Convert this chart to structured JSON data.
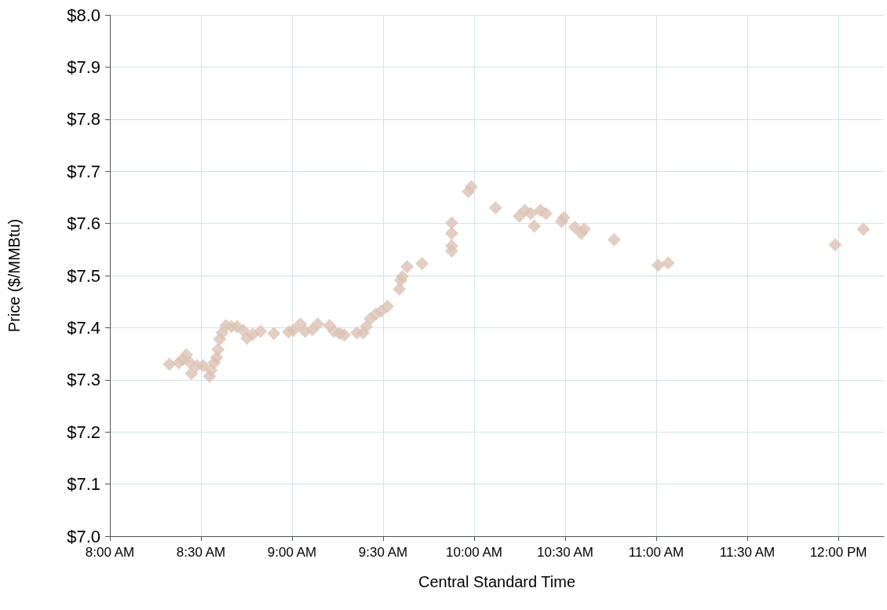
{
  "chart_data": {
    "type": "scatter",
    "xlabel": "Central Standard Time",
    "ylabel": "Price ($/MMBtu)",
    "x": [
      8.327,
      8.379,
      8.4,
      8.42,
      8.44,
      8.448,
      8.478,
      8.512,
      8.547,
      8.555,
      8.573,
      8.586,
      8.594,
      8.603,
      8.616,
      8.637,
      8.667,
      8.698,
      8.732,
      8.753,
      8.784,
      8.827,
      8.9,
      8.982,
      9.008,
      9.046,
      9.072,
      9.111,
      9.141,
      9.206,
      9.231,
      9.262,
      9.287,
      9.356,
      9.391,
      9.408,
      9.43,
      9.46,
      9.49,
      9.524,
      9.589,
      9.597,
      9.606,
      9.632,
      9.714,
      9.877,
      9.877,
      9.877,
      9.877,
      9.968,
      9.985,
      10.118,
      10.248,
      10.278,
      10.312,
      10.33,
      10.364,
      10.394,
      10.48,
      10.493,
      10.553,
      10.588,
      10.605,
      10.769,
      11.01,
      11.066,
      11.983,
      12.138
    ],
    "values": [
      7.33,
      7.333,
      7.339,
      7.348,
      7.333,
      7.312,
      7.327,
      7.327,
      7.307,
      7.318,
      7.333,
      7.343,
      7.358,
      7.378,
      7.39,
      7.404,
      7.402,
      7.402,
      7.395,
      7.38,
      7.387,
      7.393,
      7.389,
      7.392,
      7.395,
      7.407,
      7.393,
      7.396,
      7.407,
      7.404,
      7.393,
      7.389,
      7.386,
      7.39,
      7.39,
      7.402,
      7.417,
      7.426,
      7.432,
      7.441,
      7.474,
      7.491,
      7.498,
      7.517,
      7.523,
      7.601,
      7.581,
      7.557,
      7.547,
      7.661,
      7.67,
      7.63,
      7.614,
      7.625,
      7.619,
      7.595,
      7.625,
      7.619,
      7.604,
      7.611,
      7.593,
      7.581,
      7.589,
      7.569,
      7.52,
      7.524,
      7.559,
      7.589
    ],
    "color": "#dbc2b4",
    "marker": "diamond",
    "grid": true,
    "xlim": [
      8,
      12.25
    ],
    "xticks": [
      {
        "value": 8,
        "label": "8:00 AM"
      },
      {
        "value": 8.5,
        "label": "8:30 AM"
      },
      {
        "value": 9,
        "label": "9:00 AM"
      },
      {
        "value": 9.5,
        "label": "9:30 AM"
      },
      {
        "value": 10,
        "label": "10:00 AM"
      },
      {
        "value": 10.5,
        "label": "10:30 AM"
      },
      {
        "value": 11,
        "label": "11:00 AM"
      },
      {
        "value": 11.5,
        "label": "11:30 AM"
      },
      {
        "value": 12,
        "label": "12:00 PM"
      }
    ],
    "ylim": [
      7,
      8
    ],
    "yticks": [
      {
        "value": 7,
        "label": "$7.0"
      },
      {
        "value": 7.1,
        "label": "$7.1"
      },
      {
        "value": 7.2,
        "label": "$7.2"
      },
      {
        "value": 7.3,
        "label": "$7.3"
      },
      {
        "value": 7.4,
        "label": "$7.4"
      },
      {
        "value": 7.5,
        "label": "$7.5"
      },
      {
        "value": 7.6,
        "label": "$7.6"
      },
      {
        "value": 7.7,
        "label": "$7.7"
      },
      {
        "value": 7.8,
        "label": "$7.8"
      },
      {
        "value": 7.9,
        "label": "$7.9"
      },
      {
        "value": 8,
        "label": "$8.0"
      }
    ]
  }
}
